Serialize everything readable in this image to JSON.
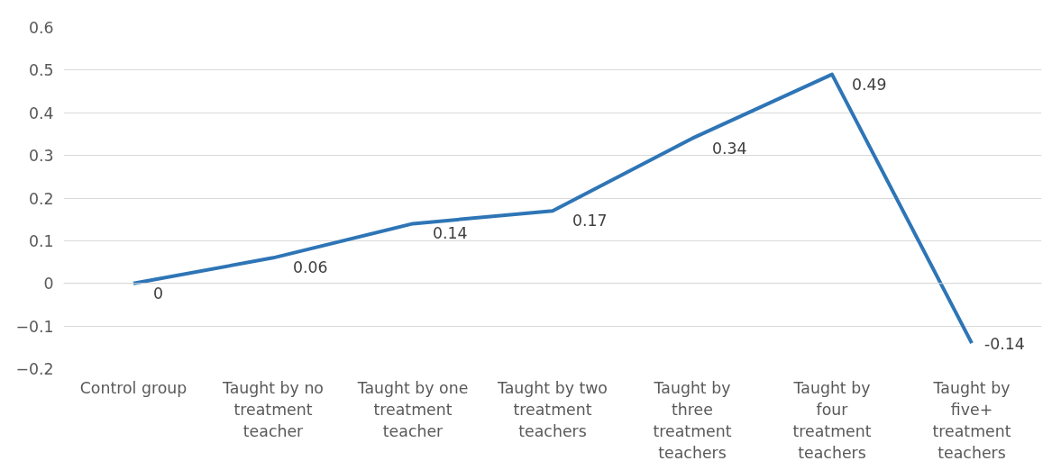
{
  "chart_data": {
    "type": "line",
    "categories": [
      "Control group",
      "Taught by no treatment teacher",
      "Taught by one treatment teacher",
      "Taught by two treatment teachers",
      "Taught by three treatment teachers",
      "Taught by four treatment teachers",
      "Taught by five+ treatment teachers"
    ],
    "series": [
      {
        "color": "#2e75b6",
        "values": [
          0,
          0.06,
          0.14,
          0.17,
          0.34,
          0.49,
          -0.14
        ]
      }
    ],
    "ylim": [
      -0.2,
      0.6
    ],
    "yticks": [
      -0.2,
      -0.1,
      0,
      0.1,
      0.2,
      0.3,
      0.4,
      0.5,
      0.6
    ],
    "grid": "y",
    "marker": "none",
    "line_style": "solid",
    "data_labels": true
  }
}
